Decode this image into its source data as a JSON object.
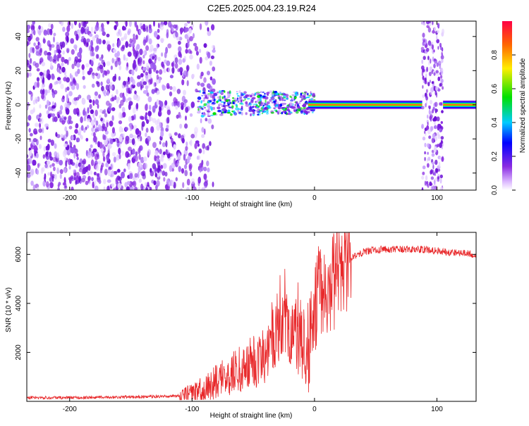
{
  "title": "C2E5.2025.004.23.19.R24",
  "charts": {
    "spectrogram": {
      "type": "heatmap",
      "xlabel": "Height of straight line (km)",
      "ylabel": "Frequency (Hz)",
      "xlim": [
        -235,
        132
      ],
      "ylim": [
        -50,
        49
      ],
      "xticks": [
        -200,
        -100,
        0,
        100
      ],
      "yticks": [
        -40,
        -20,
        0,
        20,
        40
      ],
      "colorbar": {
        "label": "Normalized spectral amplitude",
        "range": [
          0,
          1
        ],
        "ticks": [
          0.0,
          0.2,
          0.4,
          0.6,
          0.8
        ]
      },
      "features": {
        "noise_region_x": [
          -235,
          -90
        ],
        "signal_band_freq_hz": 0,
        "interference_bands_x": [
          [
            88,
            105
          ]
        ]
      }
    },
    "snr": {
      "type": "line",
      "xlabel": "Height of straight line (km)",
      "ylabel": "SNR (10 * v/v)",
      "xlim": [
        -235,
        132
      ],
      "ylim": [
        0,
        6900
      ],
      "xticks": [
        -200,
        -100,
        0,
        100
      ],
      "yticks": [
        2000,
        4000,
        6000
      ],
      "series": [
        {
          "color": "#e8282a",
          "points": [
            [
              -235,
              150
            ],
            [
              -200,
              150
            ],
            [
              -150,
              180
            ],
            [
              -110,
              220
            ],
            [
              -100,
              300
            ],
            [
              -90,
              500
            ],
            [
              -80,
              800
            ],
            [
              -70,
              1100
            ],
            [
              -60,
              1300
            ],
            [
              -50,
              1600
            ],
            [
              -40,
              1900
            ],
            [
              -30,
              2800
            ],
            [
              -25,
              3500
            ],
            [
              -20,
              3000
            ],
            [
              -10,
              2400
            ],
            [
              -5,
              2000
            ],
            [
              0,
              3800
            ],
            [
              5,
              4500
            ],
            [
              10,
              4200
            ],
            [
              15,
              4800
            ],
            [
              20,
              5300
            ],
            [
              25,
              5700
            ],
            [
              30,
              5900
            ],
            [
              40,
              6100
            ],
            [
              50,
              6200
            ],
            [
              70,
              6200
            ],
            [
              90,
              6200
            ],
            [
              110,
              6100
            ],
            [
              132,
              6000
            ]
          ]
        }
      ]
    }
  }
}
